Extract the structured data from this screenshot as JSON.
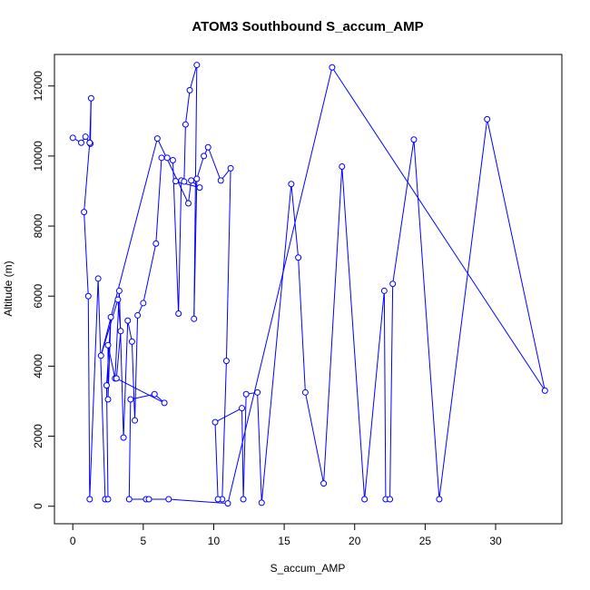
{
  "chart_data": {
    "type": "line",
    "title": "ATOM3 Southbound S_accum_AMP",
    "xlabel": "S_accum_AMP",
    "ylabel": "Altitude (m)",
    "xlim": [
      -1.3,
      34.7
    ],
    "ylim": [
      -500,
      12900
    ],
    "xticks": [
      0,
      5,
      10,
      15,
      20,
      25,
      30
    ],
    "yticks": [
      0,
      2000,
      4000,
      6000,
      8000,
      10000,
      12000
    ],
    "grid": false,
    "color": "#0000ff",
    "marker": "open-circle",
    "series": [
      {
        "points": [
          [
            0.0,
            10520
          ],
          [
            0.6,
            10380
          ],
          [
            0.9,
            10550
          ],
          [
            1.2,
            10380
          ],
          [
            1.25,
            10350
          ],
          [
            1.3,
            11650
          ],
          [
            1.2,
            10380
          ],
          [
            0.8,
            8400
          ],
          [
            1.1,
            6000
          ],
          [
            1.2,
            200
          ],
          [
            1.8,
            6500
          ],
          [
            2.3,
            200
          ],
          [
            2.5,
            200
          ],
          [
            2.4,
            3450
          ],
          [
            2.7,
            5400
          ],
          [
            2.5,
            3050
          ],
          [
            2.5,
            4600
          ],
          [
            3.0,
            3650
          ],
          [
            3.3,
            6150
          ],
          [
            3.6,
            1960
          ],
          [
            3.9,
            5300
          ],
          [
            4.2,
            4700
          ],
          [
            4.4,
            2450
          ],
          [
            4.6,
            5450
          ],
          [
            5.0,
            5800
          ],
          [
            5.9,
            7500
          ],
          [
            6.3,
            9950
          ],
          [
            6.7,
            9950
          ],
          [
            7.1,
            9880
          ],
          [
            7.5,
            5500
          ],
          [
            7.7,
            9300
          ],
          [
            7.9,
            9270
          ],
          [
            8.0,
            10900
          ],
          [
            8.3,
            11880
          ],
          [
            8.8,
            12600
          ],
          [
            8.6,
            5350
          ],
          [
            8.8,
            9350
          ],
          [
            9.3,
            10000
          ],
          [
            9.6,
            10250
          ],
          [
            10.5,
            9300
          ],
          [
            11.2,
            9650
          ],
          [
            10.9,
            4150
          ],
          [
            10.6,
            200
          ],
          [
            10.3,
            200
          ],
          [
            10.1,
            2400
          ],
          [
            12.0,
            2800
          ],
          [
            12.1,
            200
          ],
          [
            12.3,
            3200
          ],
          [
            13.1,
            3250
          ],
          [
            13.4,
            100
          ],
          [
            15.5,
            9200
          ],
          [
            16.0,
            7100
          ],
          [
            16.5,
            3250
          ],
          [
            17.8,
            650
          ],
          [
            19.1,
            9700
          ],
          [
            20.7,
            200
          ],
          [
            22.1,
            6150
          ],
          [
            22.2,
            200
          ],
          [
            22.5,
            200
          ],
          [
            22.7,
            6350
          ],
          [
            24.2,
            10470
          ],
          [
            26.0,
            200
          ],
          [
            29.4,
            11050
          ],
          [
            33.5,
            3300
          ],
          [
            18.4,
            12530
          ],
          [
            11.0,
            80
          ],
          [
            6.8,
            200
          ],
          [
            5.2,
            200
          ],
          [
            5.4,
            200
          ],
          [
            4.0,
            200
          ],
          [
            4.1,
            3050
          ],
          [
            5.8,
            3200
          ],
          [
            6.5,
            2950
          ],
          [
            3.1,
            3650
          ],
          [
            3.4,
            5000
          ],
          [
            3.2,
            5900
          ],
          [
            2.0,
            4300
          ],
          [
            6.0,
            10500
          ],
          [
            8.2,
            8650
          ],
          [
            8.4,
            9300
          ],
          [
            9.0,
            9100
          ],
          [
            7.3,
            9280
          ]
        ]
      }
    ]
  }
}
